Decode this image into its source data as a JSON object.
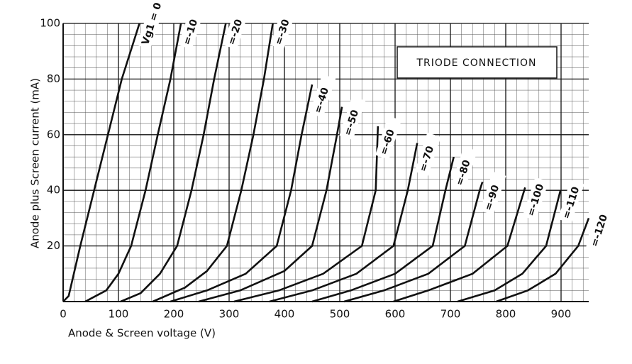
{
  "chart_data": {
    "type": "line",
    "annotation": "TRIODE CONNECTION",
    "x_label": "Anode & Screen voltage (V)",
    "y_label": "Anode plus Screen current (mA)",
    "xlim": [
      0,
      950
    ],
    "ylim": [
      0,
      100
    ],
    "xticks": [
      0,
      100,
      200,
      300,
      400,
      500,
      600,
      700,
      800,
      900
    ],
    "yticks": [
      20,
      40,
      60,
      80,
      100
    ],
    "grid": true,
    "color": "#111111",
    "series": [
      {
        "name": "Vg1 = 0",
        "x": [
          0,
          10,
          31,
          56,
          81,
          106,
          138
        ],
        "values": [
          0,
          2,
          20,
          40,
          60,
          80,
          100
        ]
      },
      {
        "name": "=-10",
        "x": [
          40,
          78,
          100,
          123,
          149,
          171,
          194,
          213
        ],
        "values": [
          0,
          4,
          10,
          20,
          40,
          60,
          80,
          100
        ]
      },
      {
        "name": "=-20",
        "x": [
          104,
          140,
          175,
          206,
          232,
          254,
          273,
          294
        ],
        "values": [
          0,
          3,
          10,
          20,
          40,
          60,
          80,
          100
        ]
      },
      {
        "name": "=-30",
        "x": [
          162,
          220,
          260,
          296,
          322,
          344,
          363,
          379
        ],
        "values": [
          0,
          5,
          11,
          20,
          40,
          60,
          80,
          100
        ]
      },
      {
        "name": "=-40",
        "x": [
          194,
          260,
          330,
          386,
          412,
          431,
          450
        ],
        "values": [
          0,
          4,
          10,
          20,
          40,
          60,
          78
        ]
      },
      {
        "name": "=-50",
        "x": [
          245,
          320,
          400,
          450,
          476,
          495,
          504
        ],
        "values": [
          0,
          4,
          11,
          20,
          40,
          60,
          70
        ]
      },
      {
        "name": "=-60",
        "x": [
          309,
          390,
          470,
          540,
          565,
          569
        ],
        "values": [
          0,
          4,
          10,
          20,
          40,
          63
        ]
      },
      {
        "name": "=-70",
        "x": [
          373,
          450,
          530,
          597,
          623,
          640
        ],
        "values": [
          0,
          4,
          10,
          20,
          40,
          57
        ]
      },
      {
        "name": "=-80",
        "x": [
          450,
          520,
          600,
          668,
          691,
          706
        ],
        "values": [
          0,
          4,
          10,
          20,
          40,
          52
        ]
      },
      {
        "name": "=-90",
        "x": [
          508,
          580,
          660,
          726,
          753,
          758
        ],
        "values": [
          0,
          4,
          10,
          20,
          40,
          43
        ]
      },
      {
        "name": "=-100",
        "x": [
          597,
          660,
          740,
          803,
          835
        ],
        "values": [
          0,
          4,
          10,
          20,
          41
        ]
      },
      {
        "name": "=-110",
        "x": [
          713,
          780,
          830,
          873,
          899
        ],
        "values": [
          0,
          4,
          10,
          20,
          40
        ]
      },
      {
        "name": "=-120",
        "x": [
          783,
          840,
          890,
          931,
          950
        ],
        "values": [
          0,
          4,
          10,
          20,
          30
        ]
      }
    ]
  }
}
